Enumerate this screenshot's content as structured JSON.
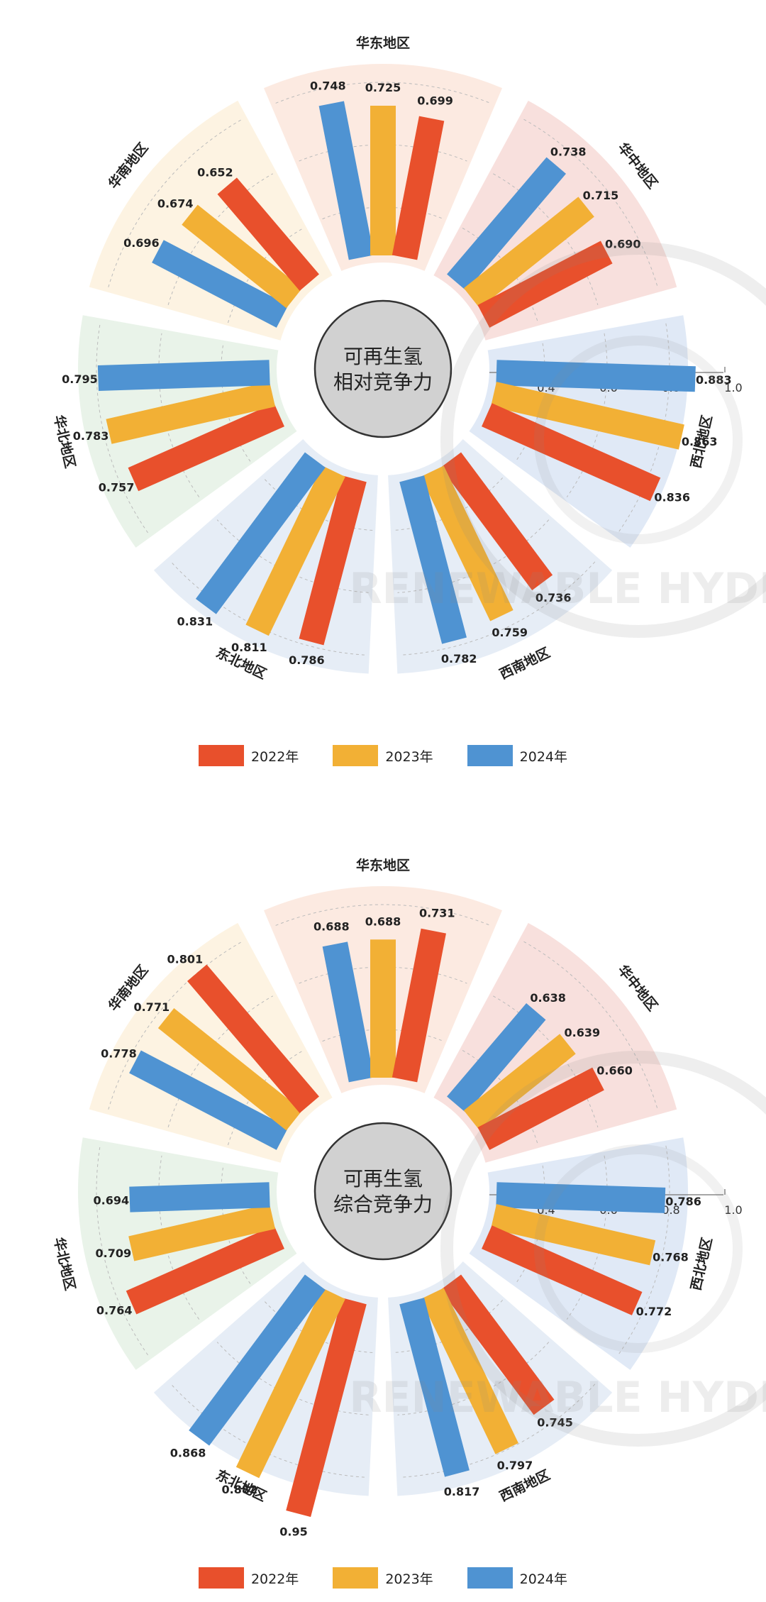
{
  "colors": {
    "y2022": "#e8502c",
    "y2023": "#f2b035",
    "y2024": "#4f93d2"
  },
  "legend": [
    "2022年",
    "2023年",
    "2024年"
  ],
  "watermark_text": "RENEWABLE HYDROGEN",
  "chart_data": [
    {
      "type": "radial-bar",
      "center_title_lines": [
        "可再生氢",
        "相对竞争力"
      ],
      "ticks": [
        "0.4",
        "0.6",
        "0.8",
        "1.0"
      ],
      "series": [
        {
          "name": "2022年"
        },
        {
          "name": "2023年"
        },
        {
          "name": "2024年"
        }
      ],
      "groups": [
        {
          "name": "华东地区",
          "values": {
            "2022": 0.699,
            "2023": 0.725,
            "2024": 0.748
          }
        },
        {
          "name": "华中地区",
          "values": {
            "2022": 0.69,
            "2023": 0.715,
            "2024": 0.738
          }
        },
        {
          "name": "西北地区",
          "values": {
            "2022": 0.836,
            "2023": 0.863,
            "2024": 0.883
          }
        },
        {
          "name": "西南地区",
          "values": {
            "2022": 0.736,
            "2023": 0.759,
            "2024": 0.782
          }
        },
        {
          "name": "东北地区",
          "values": {
            "2022": 0.786,
            "2023": 0.811,
            "2024": 0.831
          }
        },
        {
          "name": "华北地区",
          "values": {
            "2022": 0.757,
            "2023": 0.783,
            "2024": 0.795
          }
        },
        {
          "name": "华南地区",
          "values": {
            "2022": 0.652,
            "2023": 0.674,
            "2024": 0.696
          }
        }
      ],
      "labels": {
        "华东地区": [
          "0.699",
          "0.725",
          "0.748"
        ],
        "华中地区": [
          "0.690",
          "0.715",
          "0.738"
        ],
        "西北地区": [
          "0.836",
          "0.863",
          "0.883"
        ],
        "西南地区": [
          "0.736",
          "0.759",
          "0.782"
        ],
        "东北地区": [
          "0.786",
          "0.811",
          "0.831"
        ],
        "华北地区": [
          "0.757",
          "0.783",
          "0.795"
        ],
        "华南地区": [
          "0.652",
          "0.674",
          "0.696"
        ]
      }
    },
    {
      "type": "radial-bar",
      "center_title_lines": [
        "可再生氢",
        "综合竞争力"
      ],
      "ticks": [
        "0.4",
        "0.6",
        "0.8",
        "1.0"
      ],
      "series": [
        {
          "name": "2022年"
        },
        {
          "name": "2023年"
        },
        {
          "name": "2024年"
        }
      ],
      "groups": [
        {
          "name": "华东地区",
          "values": {
            "2022": 0.731,
            "2023": 0.688,
            "2024": 0.688
          }
        },
        {
          "name": "华中地区",
          "values": {
            "2022": 0.66,
            "2023": 0.639,
            "2024": 0.638
          }
        },
        {
          "name": "西北地区",
          "values": {
            "2022": 0.772,
            "2023": 0.768,
            "2024": 0.786
          }
        },
        {
          "name": "西南地区",
          "values": {
            "2022": 0.745,
            "2023": 0.797,
            "2024": 0.817
          }
        },
        {
          "name": "东北地区",
          "values": {
            "2022": 0.95,
            "2023": 0.882,
            "2024": 0.868
          }
        },
        {
          "name": "华北地区",
          "values": {
            "2022": 0.764,
            "2023": 0.709,
            "2024": 0.694
          }
        },
        {
          "name": "华南地区",
          "values": {
            "2022": 0.801,
            "2023": 0.771,
            "2024": 0.778
          }
        }
      ],
      "labels": {
        "华东地区": [
          "0.731",
          "0.688",
          "0.688"
        ],
        "华中地区": [
          "0.660",
          "0.639",
          "0.638"
        ],
        "西北地区": [
          "0.772",
          "0.768",
          "0.786"
        ],
        "西南地区": [
          "0.745",
          "0.797",
          "0.817"
        ],
        "东北地区": [
          "0.95",
          "0.882",
          "0.868"
        ],
        "华北地区": [
          "0.764",
          "0.709",
          "0.694"
        ],
        "华南地区": [
          "0.801",
          "0.771",
          "0.778"
        ]
      }
    }
  ]
}
